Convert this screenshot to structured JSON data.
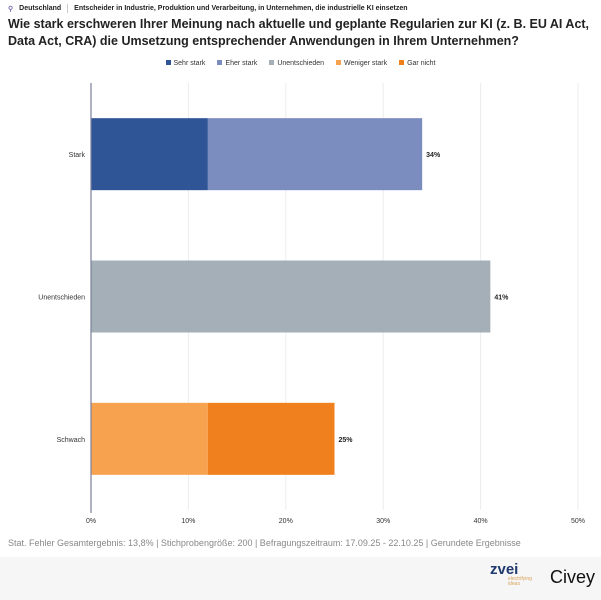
{
  "meta": {
    "country": "Deutschland",
    "audience": "Entscheider in Industrie, Produktion und Verarbeitung, in Unternehmen, die industrielle KI einsetzen"
  },
  "chart_data": {
    "type": "bar",
    "orientation": "horizontal",
    "stacked": true,
    "title": "Wie stark erschweren Ihrer Meinung nach aktuelle und geplante Regularien zur KI (z. B. EU AI Act, Data Act, CRA) die Umsetzung entsprechender Anwendungen in Ihrem Unternehmen?",
    "categories": [
      "Stark",
      "Unentschieden",
      "Schwach"
    ],
    "series": [
      {
        "name": "Sehr stark",
        "color": "#2f5597",
        "values": [
          12,
          0,
          0
        ]
      },
      {
        "name": "Eher stark",
        "color": "#7b8cbf",
        "values": [
          22,
          0,
          0
        ]
      },
      {
        "name": "Unentschieden",
        "color": "#a4afb7",
        "values": [
          0,
          41,
          0
        ]
      },
      {
        "name": "Weniger stark",
        "color": "#f7a24f",
        "values": [
          0,
          0,
          12
        ]
      },
      {
        "name": "Gar nicht",
        "color": "#f07f1d",
        "values": [
          0,
          0,
          13
        ]
      }
    ],
    "totals_labels": [
      "34%",
      "41%",
      "25%"
    ],
    "xlim": [
      0,
      50
    ],
    "xticks": [
      "0%",
      "10%",
      "20%",
      "30%",
      "40%",
      "50%"
    ],
    "grid": true,
    "legend": "top-center"
  },
  "footer": {
    "note": "Stat. Fehler Gesamtergebnis: 13,8% | Stichprobengröße: 200 | Befragungszeitraum: 17.09.25 - 22.10.25 | Gerundete Ergebnisse"
  },
  "logos": {
    "zvei": "zvei",
    "zvei_tagline": "electrifying ideas",
    "civey": "Civey"
  }
}
